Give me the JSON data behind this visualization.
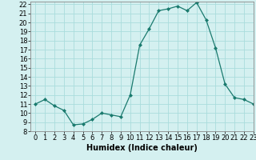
{
  "x": [
    0,
    1,
    2,
    3,
    4,
    5,
    6,
    7,
    8,
    9,
    10,
    11,
    12,
    13,
    14,
    15,
    16,
    17,
    18,
    19,
    20,
    21,
    22,
    23
  ],
  "y": [
    11,
    11.5,
    10.8,
    10.3,
    8.7,
    8.8,
    9.3,
    10.0,
    9.8,
    9.6,
    12.0,
    17.5,
    19.3,
    21.3,
    21.5,
    21.8,
    21.3,
    22.2,
    20.3,
    17.2,
    13.2,
    11.7,
    11.5,
    11.0
  ],
  "line_color": "#1a7a6e",
  "marker_color": "#1a7a6e",
  "bg_color": "#d4f0f0",
  "grid_color": "#aadcdc",
  "xlabel": "Humidex (Indice chaleur)",
  "ylim": [
    8,
    22
  ],
  "xlim": [
    -0.5,
    23
  ],
  "yticks": [
    8,
    9,
    10,
    11,
    12,
    13,
    14,
    15,
    16,
    17,
    18,
    19,
    20,
    21,
    22
  ],
  "xticks": [
    0,
    1,
    2,
    3,
    4,
    5,
    6,
    7,
    8,
    9,
    10,
    11,
    12,
    13,
    14,
    15,
    16,
    17,
    18,
    19,
    20,
    21,
    22,
    23
  ],
  "xlabel_fontsize": 7,
  "tick_fontsize": 6
}
